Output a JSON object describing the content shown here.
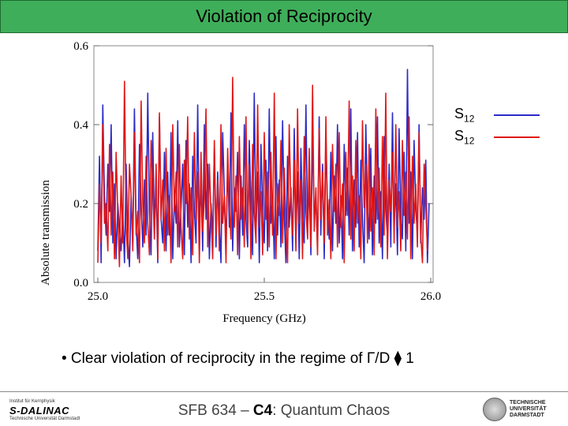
{
  "slide": {
    "title": "Violation of Reciprocity",
    "bullet": "• Clear violation of reciprocity in the regime of Γ/D ⧫ 1",
    "footer": {
      "prefix": "SFB 634 – ",
      "project": "C4",
      "suffix": ": Quantum Chaos"
    },
    "logos": {
      "left_small_1": "Institut für Kernphysik",
      "left_brand": "S-DALINAC",
      "left_small_2": "Technische Universität Darmstadt",
      "right_line1": "TECHNISCHE",
      "right_line2": "UNIVERSITÄT",
      "right_line3": "DARMSTADT"
    }
  },
  "colors": {
    "title_bg": "#3fae5a",
    "series_blue": "#2b2bc8",
    "series_red": "#e01818"
  },
  "chart_data": {
    "type": "line",
    "xlabel": "Frequency (GHz)",
    "ylabel": "Absolute transmission",
    "xlim": [
      25.0,
      26.0
    ],
    "ylim": [
      0.0,
      0.6
    ],
    "xticks": [
      "25.0",
      "25.5",
      "26.0"
    ],
    "yticks": [
      "0.0",
      "0.2",
      "0.4",
      "0.6"
    ],
    "legend": [
      {
        "label": "S",
        "sub": "12",
        "color": "#2b2bc8"
      },
      {
        "label": "S",
        "sub": "12",
        "color": "#e01818"
      }
    ],
    "series": [
      {
        "name": "S12 (blue)",
        "color": "#2b2bc8",
        "x_start": 25.0,
        "x_step": 0.005,
        "values": [
          0.08,
          0.32,
          0.05,
          0.45,
          0.22,
          0.12,
          0.3,
          0.18,
          0.4,
          0.1,
          0.25,
          0.06,
          0.2,
          0.14,
          0.08,
          0.18,
          0.05,
          0.3,
          0.12,
          0.04,
          0.22,
          0.1,
          0.44,
          0.15,
          0.06,
          0.35,
          0.2,
          0.09,
          0.26,
          0.12,
          0.48,
          0.18,
          0.07,
          0.38,
          0.14,
          0.24,
          0.05,
          0.42,
          0.16,
          0.1,
          0.33,
          0.08,
          0.28,
          0.12,
          0.38,
          0.06,
          0.22,
          0.15,
          0.41,
          0.09,
          0.19,
          0.3,
          0.07,
          0.36,
          0.14,
          0.25,
          0.05,
          0.32,
          0.18,
          0.1,
          0.45,
          0.12,
          0.26,
          0.08,
          0.4,
          0.16,
          0.3,
          0.06,
          0.2,
          0.12,
          0.34,
          0.09,
          0.28,
          0.15,
          0.05,
          0.38,
          0.22,
          0.1,
          0.3,
          0.14,
          0.43,
          0.08,
          0.24,
          0.18,
          0.33,
          0.06,
          0.27,
          0.12,
          0.4,
          0.16,
          0.09,
          0.36,
          0.2,
          0.07,
          0.48,
          0.13,
          0.28,
          0.05,
          0.35,
          0.19,
          0.1,
          0.31,
          0.08,
          0.44,
          0.15,
          0.22,
          0.06,
          0.37,
          0.12,
          0.26,
          0.09,
          0.41,
          0.17,
          0.05,
          0.32,
          0.14,
          0.24,
          0.08,
          0.39,
          0.11,
          0.28,
          0.06,
          0.34,
          0.18,
          0.1,
          0.45,
          0.13,
          0.25,
          0.07,
          0.38,
          0.16,
          0.21,
          0.09,
          0.42,
          0.12,
          0.3,
          0.06,
          0.36,
          0.19,
          0.11,
          0.33,
          0.08,
          0.27,
          0.15,
          0.4,
          0.1,
          0.22,
          0.06,
          0.35,
          0.17,
          0.29,
          0.12,
          0.44,
          0.08,
          0.26,
          0.14,
          0.38,
          0.09,
          0.31,
          0.16,
          0.05,
          0.4,
          0.2,
          0.11,
          0.34,
          0.07,
          0.27,
          0.15,
          0.42,
          0.1,
          0.23,
          0.06,
          0.37,
          0.18,
          0.12,
          0.3,
          0.09,
          0.43,
          0.14,
          0.25,
          0.07,
          0.39,
          0.17,
          0.11,
          0.33,
          0.08,
          0.54,
          0.15,
          0.28,
          0.06,
          0.36,
          0.19,
          0.12,
          0.4,
          0.1,
          0.24,
          0.16,
          0.31,
          0.05,
          0.2
        ]
      },
      {
        "name": "S12 (red)",
        "color": "#e01818",
        "x_start": 25.0,
        "x_step": 0.005,
        "values": [
          0.05,
          0.25,
          0.1,
          0.4,
          0.15,
          0.2,
          0.08,
          0.35,
          0.12,
          0.28,
          0.06,
          0.33,
          0.18,
          0.04,
          0.27,
          0.1,
          0.51,
          0.14,
          0.06,
          0.3,
          0.22,
          0.08,
          0.38,
          0.12,
          0.18,
          0.05,
          0.46,
          0.2,
          0.1,
          0.32,
          0.15,
          0.07,
          0.36,
          0.24,
          0.11,
          0.3,
          0.06,
          0.43,
          0.16,
          0.26,
          0.08,
          0.34,
          0.12,
          0.22,
          0.05,
          0.4,
          0.18,
          0.28,
          0.09,
          0.35,
          0.14,
          0.06,
          0.31,
          0.2,
          0.42,
          0.11,
          0.24,
          0.07,
          0.38,
          0.16,
          0.28,
          0.05,
          0.33,
          0.13,
          0.21,
          0.44,
          0.09,
          0.3,
          0.17,
          0.06,
          0.36,
          0.12,
          0.26,
          0.08,
          0.4,
          0.15,
          0.22,
          0.05,
          0.34,
          0.19,
          0.11,
          0.52,
          0.14,
          0.27,
          0.07,
          0.37,
          0.16,
          0.24,
          0.09,
          0.42,
          0.12,
          0.3,
          0.06,
          0.35,
          0.18,
          0.1,
          0.45,
          0.14,
          0.23,
          0.07,
          0.38,
          0.16,
          0.28,
          0.09,
          0.33,
          0.12,
          0.48,
          0.06,
          0.25,
          0.17,
          0.36,
          0.1,
          0.29,
          0.14,
          0.05,
          0.4,
          0.19,
          0.12,
          0.31,
          0.08,
          0.44,
          0.15,
          0.26,
          0.06,
          0.37,
          0.18,
          0.11,
          0.34,
          0.09,
          0.5,
          0.13,
          0.24,
          0.07,
          0.39,
          0.16,
          0.28,
          0.1,
          0.42,
          0.12,
          0.21,
          0.06,
          0.35,
          0.18,
          0.3,
          0.09,
          0.38,
          0.14,
          0.25,
          0.05,
          0.33,
          0.17,
          0.46,
          0.11,
          0.27,
          0.08,
          0.36,
          0.15,
          0.22,
          0.06,
          0.41,
          0.19,
          0.3,
          0.1,
          0.35,
          0.13,
          0.24,
          0.07,
          0.44,
          0.16,
          0.29,
          0.09,
          0.37,
          0.12,
          0.48,
          0.06,
          0.26,
          0.18,
          0.33,
          0.1,
          0.4,
          0.14,
          0.23,
          0.08,
          0.36,
          0.17,
          0.28,
          0.11,
          0.42,
          0.06,
          0.32,
          0.15,
          0.25,
          0.09,
          0.38,
          0.12,
          0.05,
          0.3,
          0.2,
          0.08
        ]
      }
    ]
  }
}
